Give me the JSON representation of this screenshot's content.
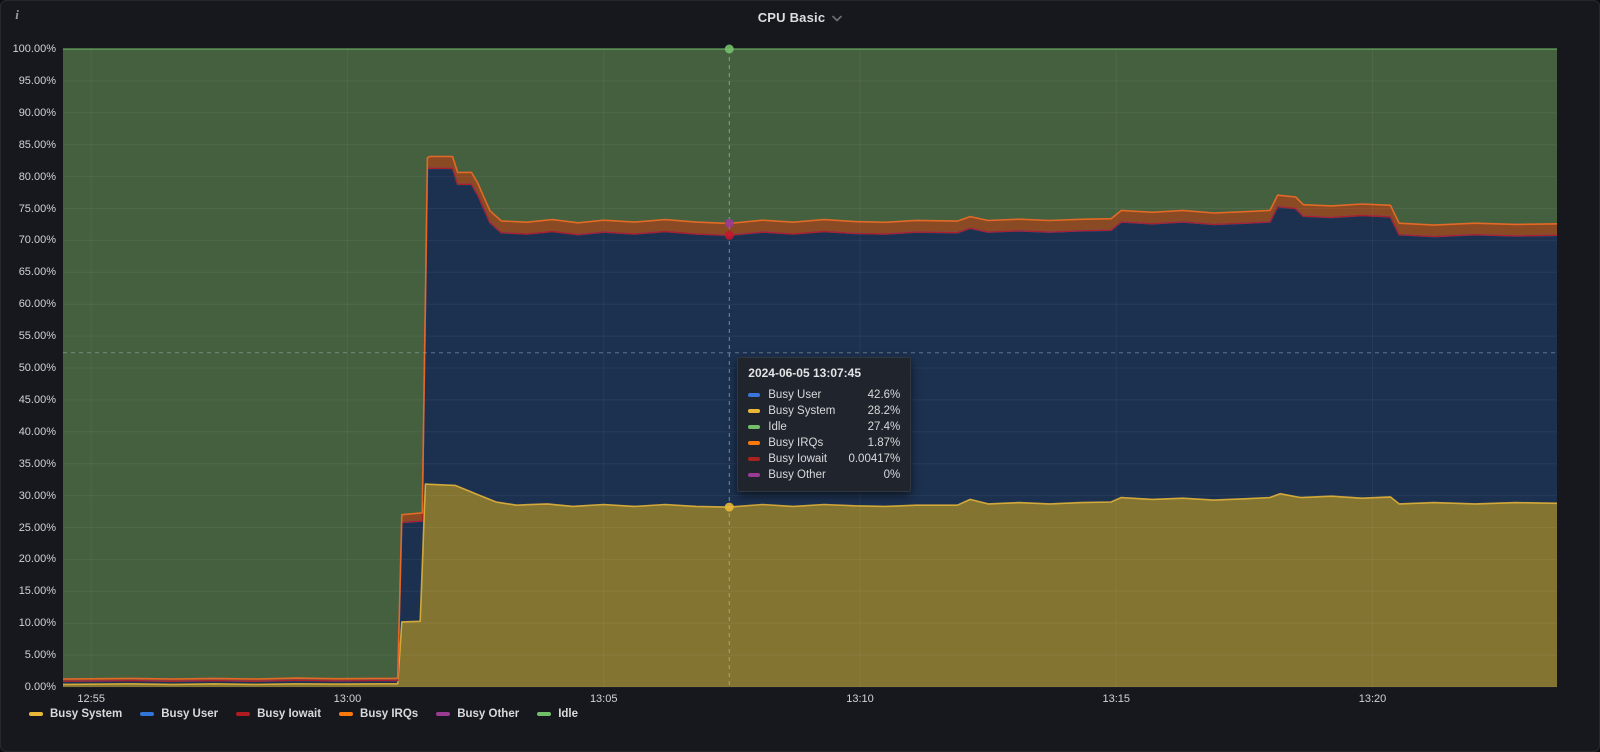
{
  "panel": {
    "title": "CPU Basic",
    "info_icon": "i"
  },
  "chart_data": {
    "type": "area",
    "stacked": true,
    "unit": "percent",
    "title": "CPU Basic",
    "ylim": [
      0,
      100
    ],
    "grid": true,
    "legend_position": "bottom-left",
    "x_range_minutes": [
      -0.55,
      28.6
    ],
    "x_ticks": [
      {
        "label": "12:55",
        "minute": 0
      },
      {
        "label": "13:00",
        "minute": 5
      },
      {
        "label": "13:05",
        "minute": 10
      },
      {
        "label": "13:10",
        "minute": 15
      },
      {
        "label": "13:15",
        "minute": 20
      },
      {
        "label": "13:20",
        "minute": 25
      }
    ],
    "y_ticks": [
      {
        "value": 100,
        "label": "100.00%"
      },
      {
        "value": 95,
        "label": "95.00%"
      },
      {
        "value": 90,
        "label": "90.00%"
      },
      {
        "value": 85,
        "label": "85.00%"
      },
      {
        "value": 80,
        "label": "80.00%"
      },
      {
        "value": 75,
        "label": "75.00%"
      },
      {
        "value": 70,
        "label": "70.00%"
      },
      {
        "value": 65,
        "label": "65.00%"
      },
      {
        "value": 60,
        "label": "60.00%"
      },
      {
        "value": 55,
        "label": "55.00%"
      },
      {
        "value": 50,
        "label": "50.00%"
      },
      {
        "value": 45,
        "label": "45.00%"
      },
      {
        "value": 40,
        "label": "40.00%"
      },
      {
        "value": 35,
        "label": "35.00%"
      },
      {
        "value": 30,
        "label": "30.00%"
      },
      {
        "value": 25,
        "label": "25.00%"
      },
      {
        "value": 20,
        "label": "20.00%"
      },
      {
        "value": 15,
        "label": "15.00%"
      },
      {
        "value": 10,
        "label": "10.00%"
      },
      {
        "value": 5,
        "label": "5.00%"
      },
      {
        "value": 0,
        "label": "0.00%"
      }
    ],
    "series": [
      {
        "name": "Busy System",
        "color": "#EAB839",
        "fill": "#837431",
        "stack_top_pct_points": [
          [
            -0.55,
            0.4
          ],
          [
            0.8,
            0.5
          ],
          [
            1.6,
            0.4
          ],
          [
            2.4,
            0.5
          ],
          [
            3.2,
            0.4
          ],
          [
            4.0,
            0.5
          ],
          [
            4.8,
            0.45
          ],
          [
            5.6,
            0.5
          ],
          [
            5.98,
            0.5
          ],
          [
            6.06,
            10.2
          ],
          [
            6.42,
            10.3
          ],
          [
            6.52,
            31.8
          ],
          [
            7.1,
            31.6
          ],
          [
            7.5,
            30.3
          ],
          [
            7.9,
            29.0
          ],
          [
            8.3,
            28.5
          ],
          [
            8.9,
            28.7
          ],
          [
            9.4,
            28.3
          ],
          [
            10.0,
            28.6
          ],
          [
            10.6,
            28.3
          ],
          [
            11.2,
            28.6
          ],
          [
            11.8,
            28.3
          ],
          [
            12.45,
            28.2
          ],
          [
            13.1,
            28.6
          ],
          [
            13.7,
            28.3
          ],
          [
            14.3,
            28.6
          ],
          [
            14.9,
            28.4
          ],
          [
            15.5,
            28.3
          ],
          [
            16.1,
            28.5
          ],
          [
            16.9,
            28.5
          ],
          [
            17.15,
            29.4
          ],
          [
            17.5,
            28.7
          ],
          [
            18.1,
            28.9
          ],
          [
            18.7,
            28.7
          ],
          [
            19.3,
            28.9
          ],
          [
            19.9,
            29.0
          ],
          [
            20.1,
            29.7
          ],
          [
            20.7,
            29.4
          ],
          [
            21.3,
            29.6
          ],
          [
            21.9,
            29.3
          ],
          [
            22.5,
            29.5
          ],
          [
            23.0,
            29.7
          ],
          [
            23.2,
            30.3
          ],
          [
            23.6,
            29.7
          ],
          [
            24.2,
            29.9
          ],
          [
            24.8,
            29.6
          ],
          [
            25.35,
            29.8
          ],
          [
            25.52,
            28.7
          ],
          [
            26.2,
            28.9
          ],
          [
            27.0,
            28.7
          ],
          [
            27.8,
            28.9
          ],
          [
            28.6,
            28.8
          ]
        ]
      },
      {
        "name": "Busy User",
        "color": "#3274D9",
        "fill": "#1c3150",
        "stack_top_pct_points": [
          [
            -0.55,
            0.9
          ],
          [
            0.8,
            1.0
          ],
          [
            1.6,
            0.9
          ],
          [
            2.4,
            1.0
          ],
          [
            3.2,
            0.9
          ],
          [
            4.0,
            1.05
          ],
          [
            4.8,
            0.95
          ],
          [
            5.6,
            1.0
          ],
          [
            5.98,
            1.0
          ],
          [
            6.06,
            25.8
          ],
          [
            6.46,
            26.0
          ],
          [
            6.56,
            81.3
          ],
          [
            7.05,
            81.3
          ],
          [
            7.15,
            78.8
          ],
          [
            7.42,
            78.8
          ],
          [
            7.55,
            77.0
          ],
          [
            7.78,
            72.8
          ],
          [
            8.0,
            71.2
          ],
          [
            8.5,
            71.0
          ],
          [
            9.0,
            71.4
          ],
          [
            9.5,
            70.9
          ],
          [
            10.0,
            71.3
          ],
          [
            10.6,
            71.0
          ],
          [
            11.2,
            71.4
          ],
          [
            11.8,
            71.0
          ],
          [
            12.45,
            70.8
          ],
          [
            13.1,
            71.3
          ],
          [
            13.7,
            71.0
          ],
          [
            14.3,
            71.4
          ],
          [
            14.9,
            71.1
          ],
          [
            15.5,
            71.0
          ],
          [
            16.1,
            71.3
          ],
          [
            16.9,
            71.2
          ],
          [
            17.15,
            71.9
          ],
          [
            17.5,
            71.3
          ],
          [
            18.1,
            71.5
          ],
          [
            18.7,
            71.3
          ],
          [
            19.3,
            71.5
          ],
          [
            19.9,
            71.6
          ],
          [
            20.1,
            72.9
          ],
          [
            20.7,
            72.6
          ],
          [
            21.3,
            72.9
          ],
          [
            21.9,
            72.5
          ],
          [
            22.5,
            72.7
          ],
          [
            23.0,
            72.9
          ],
          [
            23.15,
            75.3
          ],
          [
            23.5,
            75.0
          ],
          [
            23.65,
            73.8
          ],
          [
            24.2,
            73.6
          ],
          [
            24.8,
            73.9
          ],
          [
            25.35,
            73.7
          ],
          [
            25.52,
            70.9
          ],
          [
            26.2,
            70.6
          ],
          [
            27.0,
            70.9
          ],
          [
            27.8,
            70.7
          ],
          [
            28.6,
            70.8
          ]
        ]
      },
      {
        "name": "Busy Iowait",
        "color": "#B11B20",
        "approx_pct": 0.00417,
        "drawn_as": "line along Busy User stack top"
      },
      {
        "name": "Busy IRQs",
        "color": "#FF780A",
        "fill": "#8a4a23",
        "band_pct_points": [
          [
            -0.55,
            0.35
          ],
          [
            5.98,
            0.35
          ],
          [
            6.06,
            1.2
          ],
          [
            6.5,
            1.3
          ],
          [
            6.6,
            1.85
          ],
          [
            12.45,
            1.87
          ],
          [
            20.0,
            1.8
          ],
          [
            28.6,
            1.8
          ]
        ]
      },
      {
        "name": "Busy Other",
        "color": "#9A3A93",
        "approx_pct": 0,
        "drawn_as": "line along Busy IRQs stack top"
      },
      {
        "name": "Idle",
        "color": "#73BF69",
        "fill": "#44603f",
        "stack_top_pct": 100
      }
    ]
  },
  "crosshair": {
    "minute": 12.45,
    "h_pct": 52.4,
    "dots": [
      {
        "series": "Idle",
        "pct": 100,
        "color": "#73BF69"
      },
      {
        "series": "Busy Other",
        "pct": 72.67,
        "color": "#9A3A93"
      },
      {
        "series": "Busy Iowait",
        "pct": 70.8,
        "color": "#C4162A"
      },
      {
        "series": "Busy System",
        "pct": 28.2,
        "color": "#EAB839"
      }
    ]
  },
  "tooltip": {
    "timestamp": "2024-06-05 13:07:45",
    "rows": [
      {
        "label": "Busy User",
        "value": "42.6%",
        "color": "#3A76D9"
      },
      {
        "label": "Busy System",
        "value": "28.2%",
        "color": "#EAB839"
      },
      {
        "label": "Idle",
        "value": "27.4%",
        "color": "#73BF69"
      },
      {
        "label": "Busy IRQs",
        "value": "1.87%",
        "color": "#FF780A"
      },
      {
        "label": "Busy Iowait",
        "value": "0.00417%",
        "color": "#A8231D"
      },
      {
        "label": "Busy Other",
        "value": "0%",
        "color": "#9A3A93"
      }
    ]
  },
  "legend": {
    "items": [
      {
        "label": "Busy System",
        "color": "#EAB839"
      },
      {
        "label": "Busy User",
        "color": "#3274D9"
      },
      {
        "label": "Busy Iowait",
        "color": "#B11B20"
      },
      {
        "label": "Busy IRQs",
        "color": "#FF780A"
      },
      {
        "label": "Busy Other",
        "color": "#9A3A93"
      },
      {
        "label": "Idle",
        "color": "#73BF69"
      }
    ]
  }
}
